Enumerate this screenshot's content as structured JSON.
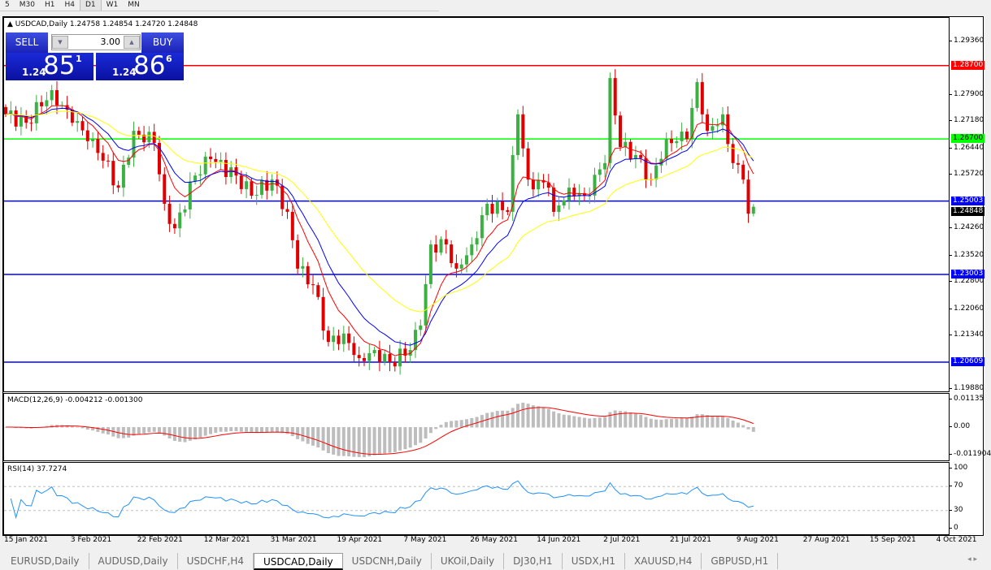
{
  "timeframes": [
    "5",
    "M30",
    "H1",
    "H4",
    "D1",
    "W1",
    "MN"
  ],
  "selected_timeframe": "D1",
  "chart": {
    "title": "USDCAD,Daily",
    "ohlc_text": "1.24758 1.24854 1.24720 1.24848"
  },
  "trade": {
    "sell": "SELL",
    "buy": "BUY",
    "lots": "3.00",
    "sell_small": "1.24",
    "sell_big": "85",
    "sell_pip": "1",
    "buy_small": "1.24",
    "buy_big": "86",
    "buy_pip": "6"
  },
  "price_axis": [
    "1.29360",
    "1.27900",
    "1.27180",
    "1.26440",
    "1.25720",
    "1.24260",
    "1.23520",
    "1.22800",
    "1.22060",
    "1.21340",
    "1.19880"
  ],
  "levels": [
    {
      "price": 1.287,
      "label": "1.28700",
      "color": "#ff0000"
    },
    {
      "price": 1.267,
      "label": "1.26700",
      "color": "#00ff00"
    },
    {
      "price": 1.25003,
      "label": "1.25003",
      "color": "#0000ff"
    },
    {
      "price": 1.23003,
      "label": "1.23003",
      "color": "#0000ff"
    },
    {
      "price": 1.20609,
      "label": "1.20609",
      "color": "#0000ff"
    }
  ],
  "current_price": {
    "price": 1.24848,
    "label": "1.24848"
  },
  "macd": {
    "title": "MACD(12,26,9) -0.004212 -0.001300",
    "axis": [
      "0.01135",
      "0.00",
      "-0.011904"
    ]
  },
  "rsi": {
    "title": "RSI(14) 37.7274",
    "axis": [
      "100",
      "70",
      "30",
      "0"
    ]
  },
  "x_labels": [
    "15 Jan 2021",
    "3 Feb 2021",
    "22 Feb 2021",
    "12 Mar 2021",
    "31 Mar 2021",
    "19 Apr 2021",
    "7 May 2021",
    "26 May 2021",
    "14 Jun 2021",
    "2 Jul 2021",
    "21 Jul 2021",
    "9 Aug 2021",
    "27 Aug 2021",
    "15 Sep 2021",
    "4 Oct 2021"
  ],
  "tabs": [
    "EURUSD,Daily",
    "AUDUSD,Daily",
    "USDCHF,H4",
    "USDCAD,Daily",
    "USDCNH,Daily",
    "UKOil,Daily",
    "DJ30,H1",
    "USDX,H1",
    "XAUUSD,H4",
    "GBPUSD,H1"
  ],
  "active_tab": "USDCAD,Daily",
  "chart_data": {
    "type": "candlestick",
    "bull_color": "#3cb043",
    "bear_color": "#e00000",
    "ma_colors": [
      "#ff0000",
      "#0000ff",
      "#ffff00"
    ],
    "close_keyframes": [
      [
        0,
        1.2737
      ],
      [
        4,
        1.2714
      ],
      [
        9,
        1.2803
      ],
      [
        13,
        1.2714
      ],
      [
        17,
        1.267
      ],
      [
        22,
        1.2537
      ],
      [
        25,
        1.2692
      ],
      [
        29,
        1.2659
      ],
      [
        31,
        1.2493
      ],
      [
        33,
        1.2426
      ],
      [
        37,
        1.257
      ],
      [
        40,
        1.2615
      ],
      [
        45,
        1.257
      ],
      [
        48,
        1.2515
      ],
      [
        52,
        1.2559
      ],
      [
        55,
        1.2471
      ],
      [
        57,
        1.2316
      ],
      [
        60,
        1.2271
      ],
      [
        63,
        1.2116
      ],
      [
        66,
        1.2139
      ],
      [
        69,
        1.2072
      ],
      [
        72,
        1.2094
      ],
      [
        75,
        1.2061
      ],
      [
        79,
        1.2094
      ],
      [
        81,
        1.2161
      ],
      [
        83,
        1.2382
      ],
      [
        86,
        1.2382
      ],
      [
        88,
        1.2316
      ],
      [
        91,
        1.2382
      ],
      [
        94,
        1.2493
      ],
      [
        98,
        1.2471
      ],
      [
        100,
        1.2737
      ],
      [
        102,
        1.2559
      ],
      [
        106,
        1.2537
      ],
      [
        107,
        1.2471
      ],
      [
        110,
        1.2537
      ],
      [
        113,
        1.2515
      ],
      [
        117,
        1.2604
      ],
      [
        118,
        1.2836
      ],
      [
        120,
        1.2648
      ],
      [
        123,
        1.2626
      ],
      [
        126,
        1.2559
      ],
      [
        129,
        1.267
      ],
      [
        133,
        1.267
      ],
      [
        135,
        1.2825
      ],
      [
        137,
        1.2692
      ],
      [
        140,
        1.2737
      ],
      [
        142,
        1.2604
      ],
      [
        144,
        1.2559
      ],
      [
        145,
        1.2466
      ],
      [
        146,
        1.24848
      ]
    ]
  }
}
